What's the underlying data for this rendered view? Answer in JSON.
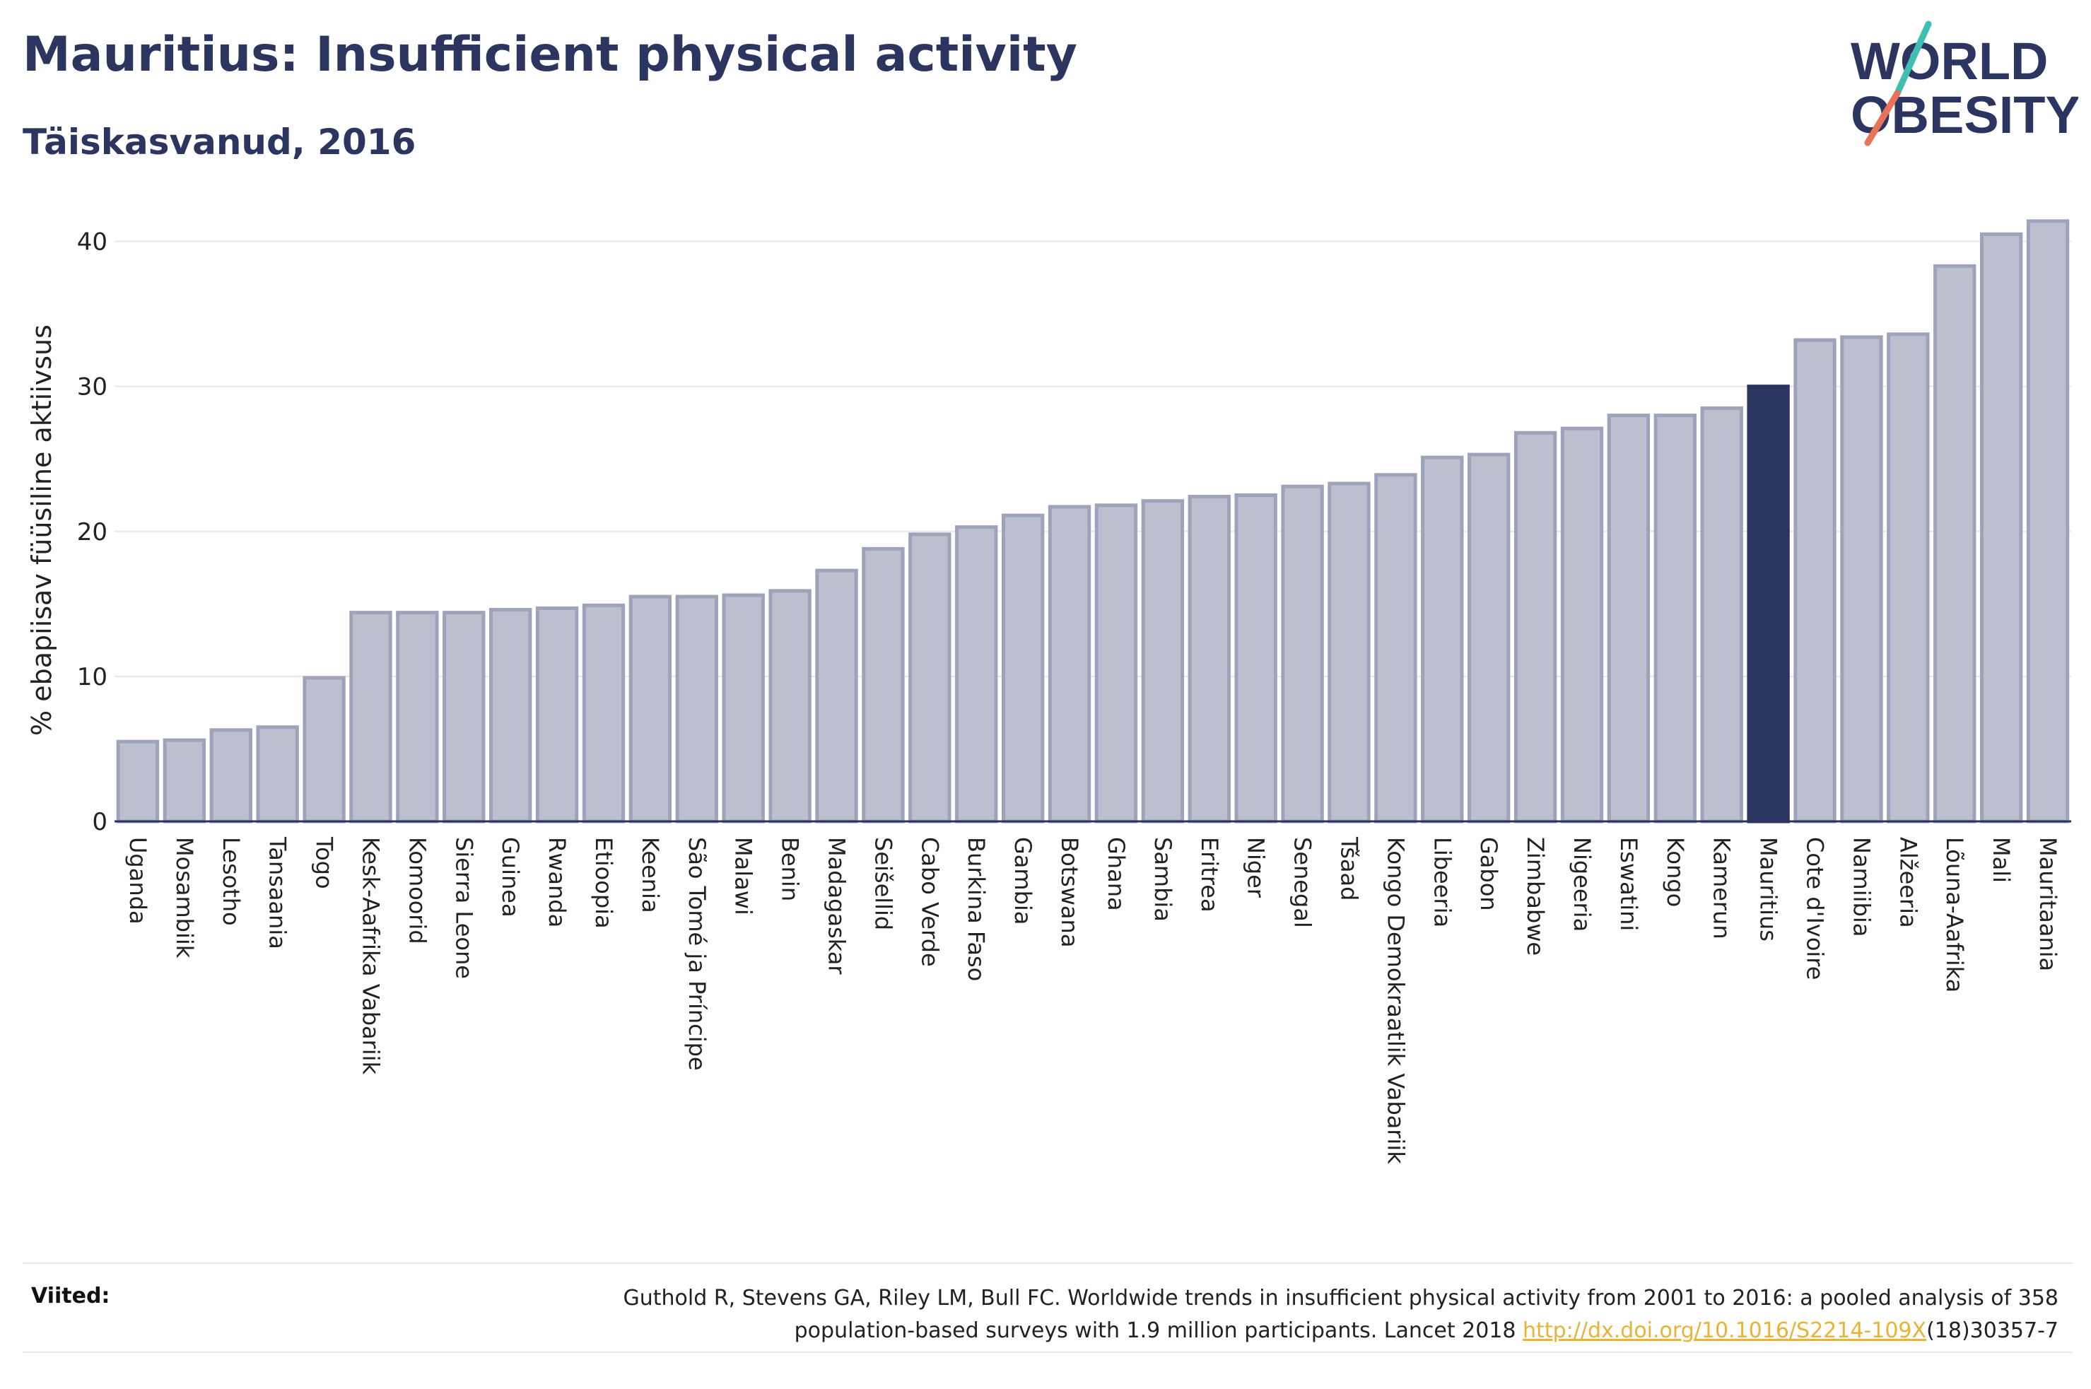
{
  "title": "Mauritius: Insufficient physical activity",
  "subtitle": "Täiskasvanud, 2016",
  "logo": {
    "line1": "WORLD",
    "line2": "OBESITY",
    "accent_colors": [
      "#3fbfb2",
      "#e8735a"
    ]
  },
  "colors": {
    "bar": "#bcc0ce",
    "bar_border": "#9ea3bb",
    "highlight": "#2b3560",
    "grid": "#e6e6e6",
    "axis": "#2b3560"
  },
  "chart_data": {
    "type": "bar",
    "ylabel": "% ebapiisav füüsiline aktiivsus",
    "ylim": [
      0,
      43
    ],
    "yticks": [
      0,
      10,
      20,
      30,
      40
    ],
    "grid": true,
    "highlight": "Mauritius",
    "categories": [
      "Uganda",
      "Mosambiik",
      "Lesotho",
      "Tansaania",
      "Togo",
      "Kesk-Aafrika Vabariik",
      "Komoorid",
      "Sierra Leone",
      "Guinea",
      "Rwanda",
      "Etioopia",
      "Keenia",
      "São Tomé ja Príncipe",
      "Malawi",
      "Benin",
      "Madagaskar",
      "Seišellid",
      "Cabo Verde",
      "Burkina Faso",
      "Gambia",
      "Botswana",
      "Ghana",
      "Sambia",
      "Eritrea",
      "Niger",
      "Senegal",
      "Tšaad",
      "Kongo Demokraatlik Vabariik",
      "Libeeria",
      "Gabon",
      "Zimbabwe",
      "Nigeeria",
      "Eswatini",
      "Kongo",
      "Kamerun",
      "Mauritius",
      "Cote d'Ivoire",
      "Namiibia",
      "Alžeeria",
      "Lõuna-Aafrika",
      "Mali",
      "Mauritaania"
    ],
    "values": [
      5.5,
      5.6,
      6.3,
      6.5,
      9.9,
      14.4,
      14.4,
      14.4,
      14.6,
      14.7,
      14.9,
      15.5,
      15.5,
      15.6,
      15.9,
      17.3,
      18.8,
      19.8,
      20.3,
      21.1,
      21.7,
      21.8,
      22.1,
      22.4,
      22.5,
      23.1,
      23.3,
      23.9,
      25.1,
      25.3,
      26.8,
      27.1,
      28.0,
      28.0,
      28.5,
      30.0,
      33.2,
      33.4,
      33.6,
      38.3,
      40.5,
      41.4
    ]
  },
  "references": {
    "label": "Viited:",
    "text_before": "Guthold R, Stevens GA, Riley LM, Bull FC. Worldwide trends in insufficient physical activity from 2001 to 2016: a pooled analysis of 358 population-based surveys with 1.9 million participants. Lancet 2018 ",
    "link": "http://dx.doi.org/10.1016/S2214-109X",
    "text_after": "(18)30357-7"
  }
}
